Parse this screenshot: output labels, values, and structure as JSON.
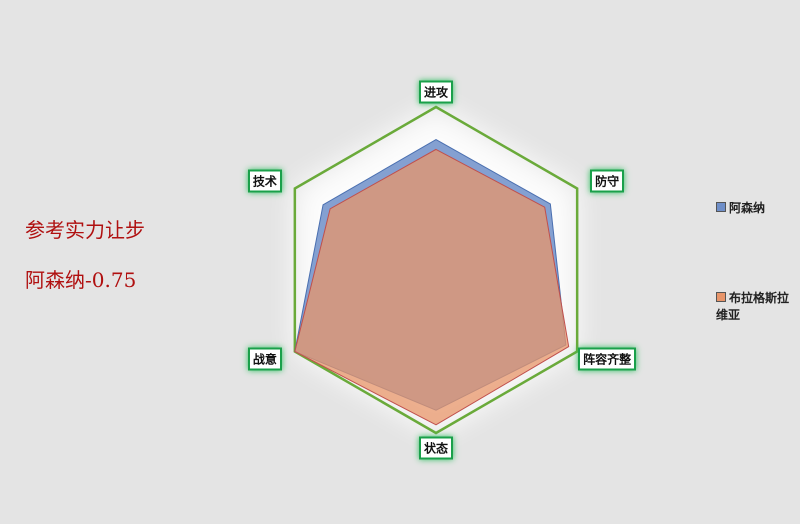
{
  "chart_data": {
    "type": "radar",
    "categories": [
      "进攻",
      "防守",
      "阵容齐整",
      "状态",
      "战意",
      "技术"
    ],
    "series": [
      {
        "name": "阿森纳",
        "color": "#6f8fc9",
        "values": [
          80,
          81,
          92,
          86,
          100,
          80
        ]
      },
      {
        "name": "布拉格斯拉维亚",
        "color": "#e8956a",
        "values": [
          74,
          77,
          94,
          95,
          100,
          75
        ]
      }
    ],
    "rlim": [
      0,
      100
    ],
    "grid_color": "#6aaa3a",
    "annotations": [
      "参考实力让步",
      "阿森纳-0.75"
    ]
  }
}
